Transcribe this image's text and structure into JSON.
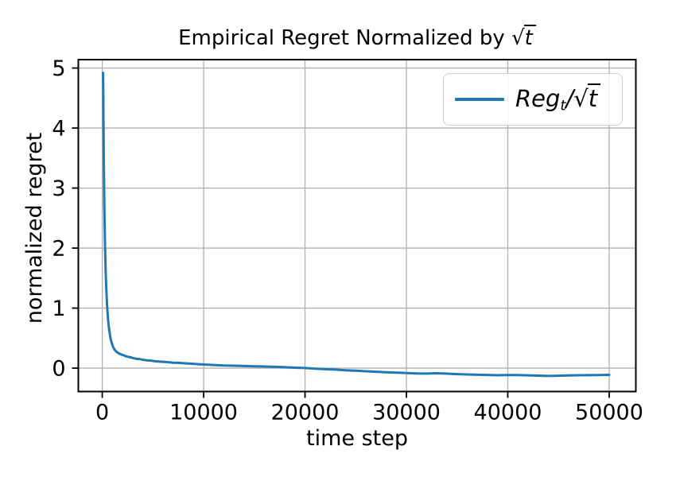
{
  "figure": {
    "title": {
      "prefix": "Empirical Regret Normalized by ",
      "sqrt_of": "t"
    },
    "xlabel": "time step",
    "ylabel": "normalized regret",
    "legend": {
      "name": "Reg",
      "sub": "t",
      "divider": "/",
      "sqrt_of": "t"
    }
  },
  "colors": {
    "line": "#1f77b4",
    "grid": "#b0b0b0",
    "spine": "#000000",
    "legend_border": "#cccccc",
    "text": "#000000"
  },
  "chart_data": {
    "type": "line",
    "title": "Empirical Regret Normalized by √t",
    "xlabel": "time step",
    "ylabel": "normalized regret",
    "xlim": [
      -2360,
      52630
    ],
    "ylim": [
      -0.39,
      5.14
    ],
    "xticks": [
      0,
      10000,
      20000,
      30000,
      40000,
      50000
    ],
    "yticks": [
      0,
      1,
      2,
      3,
      4,
      5
    ],
    "grid": true,
    "legend_position": "upper right",
    "series": [
      {
        "name": "Reg_t/√t",
        "color": "#1f77b4",
        "points": [
          [
            80,
            4.92
          ],
          [
            100,
            4.55
          ],
          [
            120,
            4.1
          ],
          [
            140,
            3.7
          ],
          [
            160,
            3.35
          ],
          [
            180,
            3.05
          ],
          [
            200,
            2.78
          ],
          [
            230,
            2.45
          ],
          [
            260,
            2.15
          ],
          [
            300,
            1.85
          ],
          [
            340,
            1.6
          ],
          [
            380,
            1.4
          ],
          [
            430,
            1.2
          ],
          [
            480,
            1.03
          ],
          [
            540,
            0.88
          ],
          [
            600,
            0.76
          ],
          [
            680,
            0.64
          ],
          [
            760,
            0.55
          ],
          [
            850,
            0.47
          ],
          [
            950,
            0.41
          ],
          [
            1050,
            0.36
          ],
          [
            1200,
            0.31
          ],
          [
            1350,
            0.28
          ],
          [
            1500,
            0.26
          ],
          [
            1700,
            0.24
          ],
          [
            1900,
            0.225
          ],
          [
            2100,
            0.215
          ],
          [
            2300,
            0.2
          ],
          [
            2500,
            0.19
          ],
          [
            2800,
            0.18
          ],
          [
            3100,
            0.165
          ],
          [
            3400,
            0.155
          ],
          [
            3700,
            0.15
          ],
          [
            4000,
            0.14
          ],
          [
            4400,
            0.13
          ],
          [
            4800,
            0.125
          ],
          [
            5200,
            0.115
          ],
          [
            5600,
            0.11
          ],
          [
            6000,
            0.105
          ],
          [
            6500,
            0.1
          ],
          [
            7000,
            0.09
          ],
          [
            7500,
            0.088
          ],
          [
            8000,
            0.082
          ],
          [
            8500,
            0.078
          ],
          [
            9000,
            0.072
          ],
          [
            9500,
            0.065
          ],
          [
            10000,
            0.06
          ],
          [
            11000,
            0.052
          ],
          [
            12000,
            0.045
          ],
          [
            13000,
            0.04
          ],
          [
            14000,
            0.035
          ],
          [
            15000,
            0.03
          ],
          [
            16000,
            0.027
          ],
          [
            17000,
            0.022
          ],
          [
            18000,
            0.015
          ],
          [
            19000,
            0.008
          ],
          [
            20000,
            0.002
          ],
          [
            21000,
            -0.008
          ],
          [
            22000,
            -0.018
          ],
          [
            23000,
            -0.025
          ],
          [
            24000,
            -0.035
          ],
          [
            25000,
            -0.042
          ],
          [
            26000,
            -0.052
          ],
          [
            27000,
            -0.06
          ],
          [
            28000,
            -0.068
          ],
          [
            29000,
            -0.075
          ],
          [
            30000,
            -0.082
          ],
          [
            31000,
            -0.088
          ],
          [
            32000,
            -0.09
          ],
          [
            33000,
            -0.085
          ],
          [
            34000,
            -0.092
          ],
          [
            35000,
            -0.1
          ],
          [
            36000,
            -0.105
          ],
          [
            37000,
            -0.11
          ],
          [
            38000,
            -0.113
          ],
          [
            39000,
            -0.118
          ],
          [
            40000,
            -0.115
          ],
          [
            41000,
            -0.116
          ],
          [
            42000,
            -0.12
          ],
          [
            43000,
            -0.125
          ],
          [
            44000,
            -0.13
          ],
          [
            45000,
            -0.126
          ],
          [
            46000,
            -0.121
          ],
          [
            47000,
            -0.119
          ],
          [
            48000,
            -0.117
          ],
          [
            49000,
            -0.114
          ],
          [
            50000,
            -0.112
          ]
        ]
      }
    ]
  }
}
